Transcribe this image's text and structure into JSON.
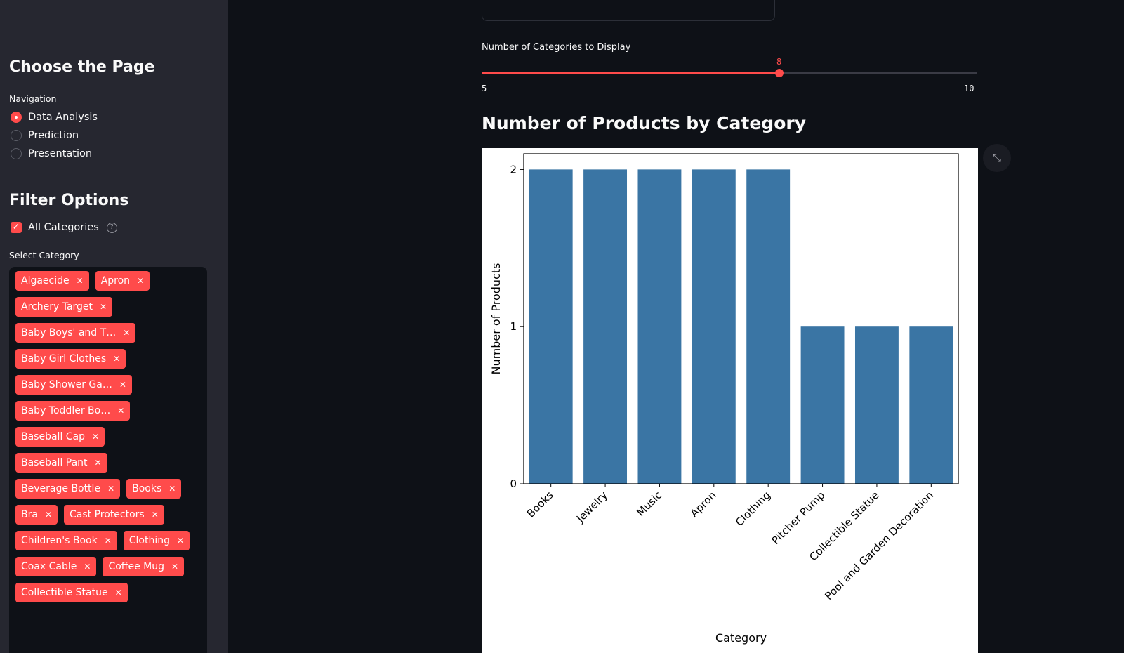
{
  "sidebar": {
    "page_heading": "Choose the Page",
    "nav_label": "Navigation",
    "nav_items": [
      {
        "label": "Data Analysis",
        "selected": true
      },
      {
        "label": "Prediction",
        "selected": false
      },
      {
        "label": "Presentation",
        "selected": false
      }
    ],
    "filter_heading": "Filter Options",
    "all_categories_label": "All Categories",
    "all_categories_checked": true,
    "select_category_label": "Select Category",
    "categories": [
      "Algaecide",
      "Apron",
      "Archery Target",
      "Baby Boys' and T…",
      "Baby Girl Clothes",
      "Baby Shower Ga…",
      "Baby Toddler Bo…",
      "Baseball Cap",
      "Baseball Pant",
      "Beverage Bottle",
      "Books",
      "Bra",
      "Cast Protectors",
      "Children's Book",
      "Clothing",
      "Coax Cable",
      "Coffee Mug",
      "Collectible Statue"
    ]
  },
  "slider": {
    "label": "Number of Categories to Display",
    "value": 8,
    "min": 5,
    "max": 10,
    "accent": "#ff4b4b"
  },
  "chart_heading": "Number of Products by Category",
  "chart_data": {
    "type": "bar",
    "categories": [
      "Books",
      "Jewelry",
      "Music",
      "Apron",
      "Clothing",
      "Pitcher Pump",
      "Collectible Statue",
      "Pool and Garden Decoration"
    ],
    "values": [
      2,
      2,
      2,
      2,
      2,
      1,
      1,
      1
    ],
    "xlabel": "Category",
    "ylabel": "Number of Products",
    "ylim": [
      0,
      2.1
    ],
    "yticks": [
      0,
      1,
      2
    ],
    "color": "#3a75a4"
  },
  "icons": {
    "expand": "expand-icon",
    "help": "help-icon",
    "tag_remove": "close-icon"
  }
}
